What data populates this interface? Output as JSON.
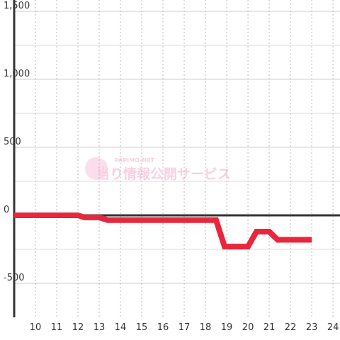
{
  "chart_data": {
    "type": "line",
    "x": [
      9,
      12,
      12.3,
      13,
      13.4,
      18.5,
      18.9,
      20,
      20.4,
      21,
      21.4,
      23
    ],
    "series": [
      {
        "color": "#e8263c",
        "values": [
          0,
          0,
          -15,
          -15,
          -35,
          -35,
          -230,
          -230,
          -120,
          -120,
          -180,
          -180
        ]
      }
    ],
    "xlim": [
      9,
      24.33
    ],
    "xticks": [
      10,
      11,
      12,
      13,
      14,
      15,
      16,
      17,
      18,
      19,
      20,
      21,
      22,
      23,
      24
    ],
    "ylim": [
      -750,
      1500
    ],
    "yticks": [
      {
        "value": 1500,
        "label": "1,500"
      },
      {
        "value": 1000,
        "label": "1,000"
      },
      500,
      0,
      -500
    ],
    "grid": true,
    "watermark": {
      "top": "PAPIMO-NET",
      "main": "当り情報公開サービス"
    }
  }
}
